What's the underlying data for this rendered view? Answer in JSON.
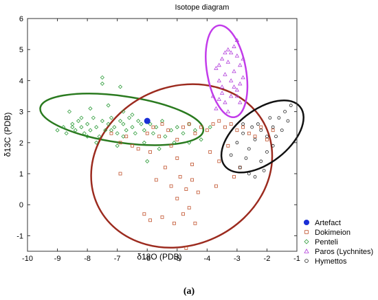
{
  "chart_data": {
    "type": "scatter",
    "title": "Isotope diagram",
    "xlabel": "δ18O (PDB)",
    "ylabel": "δ13C (PDB)",
    "xlim": [
      -10,
      -1
    ],
    "ylim": [
      -1.5,
      6
    ],
    "xticks": [
      -10,
      -9,
      -8,
      -7,
      -6,
      -5,
      -4,
      -3,
      -2,
      -1
    ],
    "yticks": [
      -1,
      0,
      1,
      2,
      3,
      4,
      5,
      6
    ],
    "grid": false,
    "legend_position": "bottom-right",
    "caption": "(a)",
    "series": [
      {
        "name": "Artefact",
        "marker": "filled-circle",
        "color": "#1a2fd6",
        "points": [
          [
            -6.0,
            2.7
          ]
        ]
      },
      {
        "name": "Dokimeion",
        "marker": "square",
        "color": "#c0502a",
        "points": [
          [
            -6.5,
            1.9
          ],
          [
            -6.0,
            2.3
          ],
          [
            -5.8,
            2.5
          ],
          [
            -5.6,
            2.2
          ],
          [
            -5.5,
            2.6
          ],
          [
            -5.3,
            2.4
          ],
          [
            -5.2,
            1.9
          ],
          [
            -5.0,
            2.1
          ],
          [
            -4.8,
            2.5
          ],
          [
            -4.6,
            2.6
          ],
          [
            -4.4,
            2.3
          ],
          [
            -4.2,
            2.5
          ],
          [
            -4.0,
            2.4
          ],
          [
            -3.8,
            2.6
          ],
          [
            -3.6,
            2.7
          ],
          [
            -3.4,
            2.5
          ],
          [
            -3.2,
            2.6
          ],
          [
            -3.0,
            2.4
          ],
          [
            -2.8,
            2.5
          ],
          [
            -2.6,
            2.3
          ],
          [
            -2.4,
            2.2
          ],
          [
            -2.2,
            2.5
          ],
          [
            -2.0,
            2.1
          ],
          [
            -1.8,
            2.4
          ],
          [
            -6.9,
            2.0
          ],
          [
            -6.7,
            2.2
          ],
          [
            -6.3,
            1.8
          ],
          [
            -5.9,
            1.7
          ],
          [
            -5.7,
            0.8
          ],
          [
            -5.4,
            1.2
          ],
          [
            -5.2,
            0.6
          ],
          [
            -5.0,
            0.2
          ],
          [
            -4.9,
            0.9
          ],
          [
            -4.7,
            0.5
          ],
          [
            -4.6,
            -0.1
          ],
          [
            -4.5,
            0.8
          ],
          [
            -4.3,
            0.4
          ],
          [
            -4.8,
            -0.3
          ],
          [
            -5.1,
            -0.6
          ],
          [
            -5.5,
            -0.4
          ],
          [
            -5.9,
            -0.5
          ],
          [
            -6.1,
            -0.3
          ],
          [
            -4.4,
            -0.6
          ],
          [
            -5.0,
            1.5
          ],
          [
            -4.5,
            1.3
          ],
          [
            -3.9,
            1.7
          ],
          [
            -3.6,
            1.4
          ],
          [
            -3.3,
            1.9
          ],
          [
            -3.1,
            0.9
          ],
          [
            -2.9,
            1.2
          ],
          [
            -6.9,
            1.0
          ],
          [
            -7.2,
            2.3
          ],
          [
            -3.7,
            0.6
          ],
          [
            -4.7,
            -1.4
          ]
        ]
      },
      {
        "name": "Penteli",
        "marker": "diamond",
        "color": "#2e9c3a",
        "points": [
          [
            -9.0,
            2.4
          ],
          [
            -8.8,
            2.5
          ],
          [
            -8.7,
            2.3
          ],
          [
            -8.5,
            2.6
          ],
          [
            -8.4,
            2.4
          ],
          [
            -8.3,
            2.7
          ],
          [
            -8.2,
            2.5
          ],
          [
            -8.1,
            2.3
          ],
          [
            -8.0,
            2.6
          ],
          [
            -7.9,
            2.4
          ],
          [
            -7.8,
            2.8
          ],
          [
            -7.7,
            2.5
          ],
          [
            -7.6,
            2.2
          ],
          [
            -7.5,
            2.7
          ],
          [
            -7.4,
            2.4
          ],
          [
            -7.3,
            2.6
          ],
          [
            -7.2,
            2.8
          ],
          [
            -7.1,
            2.5
          ],
          [
            -7.0,
            2.3
          ],
          [
            -6.9,
            2.7
          ],
          [
            -6.8,
            2.6
          ],
          [
            -6.7,
            2.4
          ],
          [
            -6.6,
            2.8
          ],
          [
            -6.5,
            2.5
          ],
          [
            -6.4,
            2.3
          ],
          [
            -6.3,
            2.7
          ],
          [
            -6.2,
            2.6
          ],
          [
            -6.1,
            2.4
          ],
          [
            -5.9,
            2.6
          ],
          [
            -5.8,
            2.3
          ],
          [
            -5.7,
            2.5
          ],
          [
            -5.5,
            2.7
          ],
          [
            -5.4,
            2.2
          ],
          [
            -5.2,
            2.4
          ],
          [
            -5.0,
            2.5
          ],
          [
            -4.8,
            2.3
          ],
          [
            -4.6,
            2.6
          ],
          [
            -4.4,
            2.4
          ],
          [
            -4.2,
            2.1
          ],
          [
            -3.9,
            2.5
          ],
          [
            -8.6,
            3.0
          ],
          [
            -7.9,
            3.1
          ],
          [
            -7.3,
            3.2
          ],
          [
            -6.8,
            3.0
          ],
          [
            -7.5,
            4.1
          ],
          [
            -7.5,
            3.9
          ],
          [
            -6.9,
            3.8
          ],
          [
            -7.7,
            2.0
          ],
          [
            -7.0,
            1.9
          ],
          [
            -6.1,
            2.0
          ],
          [
            -5.6,
            1.8
          ],
          [
            -5.1,
            2.0
          ],
          [
            -4.6,
            2.0
          ],
          [
            -6.0,
            1.4
          ],
          [
            -8.0,
            2.2
          ],
          [
            -6.5,
            2.9
          ],
          [
            -7.2,
            2.4
          ],
          [
            -8.5,
            2.5
          ],
          [
            -8.2,
            2.8
          ],
          [
            -6.8,
            2.2
          ]
        ]
      },
      {
        "name": "Paros (Lychnites)",
        "marker": "triangle",
        "color": "#b23fdb",
        "points": [
          [
            -3.6,
            3.4
          ],
          [
            -3.5,
            3.8
          ],
          [
            -3.4,
            4.2
          ],
          [
            -3.3,
            4.6
          ],
          [
            -3.2,
            4.9
          ],
          [
            -3.1,
            5.1
          ],
          [
            -3.0,
            4.8
          ],
          [
            -2.9,
            4.5
          ],
          [
            -2.8,
            4.1
          ],
          [
            -3.0,
            3.7
          ],
          [
            -3.2,
            3.5
          ],
          [
            -3.4,
            3.3
          ],
          [
            -3.6,
            4.0
          ],
          [
            -3.7,
            4.4
          ],
          [
            -3.5,
            4.7
          ],
          [
            -3.3,
            5.0
          ],
          [
            -3.1,
            4.3
          ],
          [
            -2.9,
            3.9
          ],
          [
            -3.2,
            4.0
          ],
          [
            -3.5,
            3.6
          ],
          [
            -3.8,
            3.5
          ],
          [
            -3.0,
            5.3
          ],
          [
            -2.8,
            4.7
          ],
          [
            -3.4,
            4.9
          ],
          [
            -3.6,
            4.5
          ],
          [
            -3.1,
            3.8
          ],
          [
            -2.9,
            3.3
          ],
          [
            -3.3,
            3.0
          ],
          [
            -3.7,
            3.1
          ],
          [
            -3.0,
            3.5
          ]
        ]
      },
      {
        "name": "Hymettos",
        "marker": "circle",
        "color": "#222222",
        "points": [
          [
            -3.0,
            2.0
          ],
          [
            -2.8,
            2.3
          ],
          [
            -2.6,
            1.8
          ],
          [
            -2.4,
            2.1
          ],
          [
            -2.2,
            2.4
          ],
          [
            -2.0,
            2.2
          ],
          [
            -1.8,
            2.5
          ],
          [
            -1.6,
            2.8
          ],
          [
            -1.4,
            3.0
          ],
          [
            -1.2,
            3.2
          ],
          [
            -2.9,
            1.2
          ],
          [
            -2.6,
            1.0
          ],
          [
            -2.4,
            0.9
          ],
          [
            -2.2,
            1.4
          ],
          [
            -2.0,
            1.7
          ],
          [
            -1.8,
            1.9
          ],
          [
            -2.7,
            1.5
          ],
          [
            -2.5,
            2.5
          ],
          [
            -2.3,
            2.6
          ],
          [
            -1.5,
            2.4
          ],
          [
            -1.3,
            2.7
          ],
          [
            -1.9,
            2.8
          ],
          [
            -2.1,
            1.1
          ],
          [
            -3.2,
            1.6
          ],
          [
            -2.8,
            2.6
          ],
          [
            -1.7,
            2.2
          ]
        ]
      }
    ],
    "ellipses": [
      {
        "series": "Penteli",
        "color": "#2a7a1f",
        "cx": -6.85,
        "cy": 2.75,
        "rx": 2.75,
        "ry": 0.75,
        "angle_deg": -8
      },
      {
        "series": "Dokimeion",
        "color": "#9c2b1f",
        "cx": -4.85,
        "cy": 1.25,
        "rx": 3.1,
        "ry": 2.55,
        "angle_deg": 25
      },
      {
        "series": "Paros (Lychnites)",
        "color": "#c23bea",
        "cx": -3.35,
        "cy": 4.3,
        "rx": 0.65,
        "ry": 1.5,
        "angle_deg": 10
      },
      {
        "series": "Hymettos",
        "color": "#111111",
        "cx": -2.15,
        "cy": 2.2,
        "rx": 1.6,
        "ry": 0.85,
        "angle_deg": 38
      }
    ]
  }
}
